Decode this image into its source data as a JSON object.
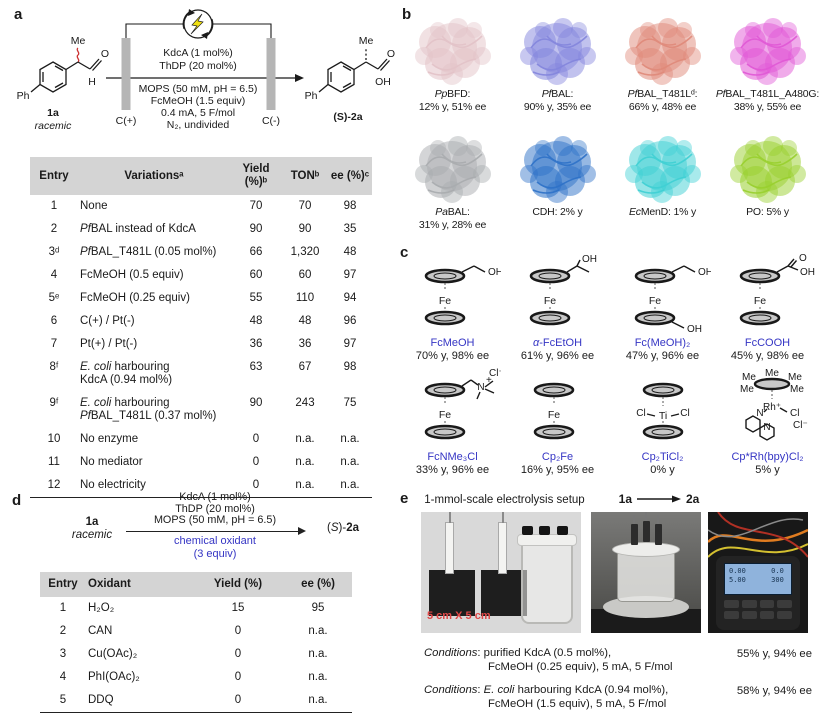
{
  "panels": {
    "a": {
      "label": "a",
      "scheme": {
        "lightning_color": "#f0e010",
        "reactant": {
          "label": "1a",
          "sublabel": "racemic",
          "me": "Me",
          "ph": "Ph",
          "o": "O",
          "h": "H"
        },
        "product": {
          "label": "(S)-2a",
          "me": "Me",
          "ph": "Ph",
          "o": "O",
          "oh": "OH"
        },
        "anode": "C(+)",
        "cathode": "C(-)",
        "conditions_top": [
          "KdcA (1 mol%)",
          "ThDP (20 mol%)"
        ],
        "conditions_bottom": [
          "MOPS (50 mM, pH = 6.5)",
          "FcMeOH (1.5 equiv)",
          "0.4 mA, 5 F/mol",
          "N₂, undivided"
        ]
      },
      "table": {
        "headers": [
          "Entry",
          "Variationsᵃ",
          "Yield (%)ᵇ",
          "TONᵇ",
          "ee (%)ᶜ"
        ],
        "rows": [
          [
            "1",
            "None",
            "70",
            "70",
            "98"
          ],
          [
            "2",
            "*Pf*BAL instead of KdcA",
            "90",
            "90",
            "35"
          ],
          [
            "3ᵈ",
            "*Pf*BAL_T481L (0.05 mol%)",
            "66",
            "1,320",
            "48"
          ],
          [
            "4",
            "FcMeOH (0.5 equiv)",
            "60",
            "60",
            "97"
          ],
          [
            "5ᵉ",
            "FcMeOH (0.25 equiv)",
            "55",
            "110",
            "94"
          ],
          [
            "6",
            "C(+) / Pt(-)",
            "48",
            "48",
            "96"
          ],
          [
            "7",
            "Pt(+) / Pt(-)",
            "36",
            "36",
            "97"
          ],
          [
            "8ᶠ",
            "*E. coli* harbouring\nKdcA (0.94 mol%)",
            "63",
            "67",
            "98"
          ],
          [
            "9ᶠ",
            "*E. coli* harbouring\n*Pf*BAL_T481L (0.37 mol%)",
            "90",
            "243",
            "75"
          ],
          [
            "10",
            "No enzyme",
            "0",
            "n.a.",
            "n.a."
          ],
          [
            "11",
            "No mediator",
            "0",
            "n.a.",
            "n.a."
          ],
          [
            "12",
            "No electricity",
            "0",
            "n.a.",
            "n.a."
          ]
        ]
      }
    },
    "b": {
      "label": "b",
      "proteins": [
        {
          "label": "*Pp*BFD:\n12% y, 51% ee",
          "color": "#e3c3c8"
        },
        {
          "label": "*Pf*BAL:\n90% y, 35% ee",
          "color": "#8486dd"
        },
        {
          "label": "*Pf*BAL_T481Lᵈ:\n66% y, 48% ee",
          "color": "#e08a7a"
        },
        {
          "label": "*Pf*BAL_T481L_A480G:\n38% y, 55% ee",
          "color": "#e158d6"
        },
        {
          "label": "*Pa*BAL:\n31% y, 28% ee",
          "color": "#a9acaf"
        },
        {
          "label": "CDH: 2% y",
          "color": "#2e72c8"
        },
        {
          "label": "*Ec*MenD: 1% y",
          "color": "#3fd0d4"
        },
        {
          "label": "PO: 5% y",
          "color": "#99d02e"
        }
      ]
    },
    "c": {
      "label": "c",
      "name_color": "#3535c4",
      "mediators": [
        {
          "name": "FcMeOH",
          "stats": "70% y, 98% ee"
        },
        {
          "name": "*α*-FcEtOH",
          "stats": "61% y, 96% ee"
        },
        {
          "name": "Fc(MeOH)₂",
          "stats": "47% y, 96% ee"
        },
        {
          "name": "FcCOOH",
          "stats": "45% y, 98% ee"
        },
        {
          "name": "FcNMe₃Cl",
          "stats": "33% y, 96% ee"
        },
        {
          "name": "Cp₂Fe",
          "stats": "16% y, 95% ee"
        },
        {
          "name": "Cp₂TiCl₂",
          "stats": "0% y"
        },
        {
          "name": "Cp*Rh(bpy)Cl₂",
          "stats": "5% y"
        }
      ]
    },
    "d": {
      "label": "d",
      "scheme": {
        "reactant_label": "**1a**",
        "reactant_sublabel": "*racemic*",
        "conditions_top": [
          "KdcA (1 mol%)",
          "ThDP (20 mol%)",
          "MOPS (50 mM, pH = 6.5)"
        ],
        "oxidant_color": "#3535c4",
        "conditions_bottom": [
          "chemical oxidant",
          "(3 equiv)"
        ],
        "product_label": "(*S*)-**2a**"
      },
      "table": {
        "headers": [
          "Entry",
          "Oxidant",
          "Yield (%)",
          "ee (%)"
        ],
        "rows": [
          [
            "1",
            "H₂O₂",
            "15",
            "95"
          ],
          [
            "2",
            "CAN",
            "0",
            "n.a."
          ],
          [
            "3",
            "Cu(OAc)₂",
            "0",
            "n.a."
          ],
          [
            "4",
            "PhI(OAc)₂",
            "0",
            "n.a."
          ],
          [
            "5",
            "DDQ",
            "0",
            "n.a."
          ]
        ]
      }
    },
    "e": {
      "label": "e",
      "setup_title": "1-mmol-scale electrolysis setup",
      "reaction_from": "1a",
      "reaction_to": "2a",
      "photo1_scale_label": "5 cm X 5 cm",
      "scale_label_color": "#e04848",
      "device_screen_lines": [
        "0.00      0.0",
        "5.00      300"
      ],
      "runs": [
        {
          "line1": "*Conditions*: purified KdcA (0.5 mol%),",
          "line2": "FcMeOH (0.25 equiv), 5 mA, 5 F/mol",
          "result": "55% y, 94% ee"
        },
        {
          "line1": "*Conditions*: *E. coli* harbouring KdcA (0.94 mol%),",
          "line2": "FcMeOH (1.5 equiv), 5 mA, 5 F/mol",
          "result": "58% y, 94% ee"
        }
      ]
    }
  }
}
